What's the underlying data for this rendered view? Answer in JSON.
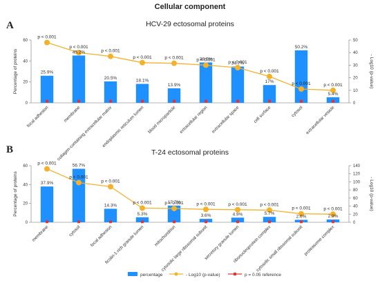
{
  "figure": {
    "title": "Cellular component"
  },
  "legend": {
    "items": [
      {
        "label": "percentage"
      },
      {
        "label": "- Log10 (p-value)"
      },
      {
        "label": "p = 0.05 reference"
      }
    ]
  },
  "colors": {
    "bar": "#1e90ff",
    "line": "#f4b12b",
    "reference": "#e8312f",
    "axis": "#9a9a9a"
  },
  "chart_data": [
    {
      "panel": "A",
      "type": "bar",
      "title": "HCV-29 ectosomal proteins",
      "ylabel": "Percentage of proteins",
      "y2label": "- Log10 (p-value)",
      "ylim": [
        0,
        60
      ],
      "yticks": [
        0,
        20,
        40,
        60
      ],
      "y2lim": [
        0,
        50
      ],
      "y2ticks": [
        0,
        10,
        20,
        30,
        40,
        50
      ],
      "categories": [
        "focal adhesion",
        "membrane",
        "collagen-containing extracellular matrix",
        "endoplasmic reticulum lumen",
        "blood microparticle",
        "extracellular region",
        "extracellular space",
        "cell surface",
        "cytosol",
        "extracellular vesicle"
      ],
      "series": [
        {
          "name": "percentage",
          "type": "bar",
          "values": [
            25.9,
            45.2,
            20.5,
            18.1,
            13.9,
            38.6,
            34.7,
            17.0,
            50.2,
            5.4
          ],
          "labels": [
            "25.9%",
            "45.2%",
            "20.5%",
            "18.1%",
            "13.9%",
            "38.6%",
            "34.7%",
            "17%",
            "50.2%",
            "5.4%"
          ]
        },
        {
          "name": "- Log10 (p-value)",
          "type": "line",
          "axis": "right",
          "values": [
            48,
            40,
            37,
            32,
            31.5,
            30,
            28,
            21,
            11,
            10
          ]
        },
        {
          "name": "p = 0.05 reference",
          "type": "line",
          "axis": "right",
          "values": [
            1.3,
            1.3,
            1.3,
            1.3,
            1.3,
            1.3,
            1.3,
            1.3,
            1.3,
            1.3
          ]
        }
      ],
      "p_labels": [
        "p < 0.001",
        "p < 0.001",
        "p < 0.001",
        "p < 0.001",
        "p < 0.001",
        "p < 0.001",
        "p < 0.001",
        "p < 0.001",
        "p < 0.001",
        "p < 0.001"
      ]
    },
    {
      "panel": "B",
      "type": "bar",
      "title": "T-24 ectosomal proteins",
      "ylabel": "Percentage of proteins",
      "y2label": "- Log10 (p-value)",
      "ylim": [
        0,
        60
      ],
      "yticks": [
        0,
        20,
        40,
        60
      ],
      "y2lim": [
        0,
        140
      ],
      "y2ticks": [
        0,
        20,
        40,
        60,
        80,
        100,
        120,
        140
      ],
      "categories": [
        "membrane",
        "cytosol",
        "focal adhesion",
        "ficolin-1-rich granule lumen",
        "mitochondrion",
        "cytosolic large ribosomal subunit",
        "secretory granule lumen",
        "ribonucleoprotein complex",
        "cytosolic small ribosomal subunit",
        "proteasome complex"
      ],
      "series": [
        {
          "name": "percentage",
          "type": "bar",
          "values": [
            37.9,
            56.7,
            14.3,
            5.3,
            17.7,
            3.6,
            4.9,
            5.7,
            2.6,
            2.9
          ],
          "labels": [
            "37.9%",
            "56.7%",
            "14.3%",
            "5.3%",
            "17.7%",
            "3.6%",
            "4.9%",
            "5.7%",
            "2.6%",
            "2.9%"
          ]
        },
        {
          "name": "- Log10 (p-value)",
          "type": "line",
          "axis": "right",
          "values": [
            132,
            98,
            88,
            35,
            34,
            32,
            31,
            30,
            21,
            20
          ]
        },
        {
          "name": "p = 0.05 reference",
          "type": "line",
          "axis": "right",
          "values": [
            1.3,
            1.3,
            1.3,
            1.3,
            1.3,
            1.3,
            1.3,
            1.3,
            1.3,
            1.3
          ]
        }
      ],
      "p_labels": [
        "p < 0.001",
        "p < 0.001",
        "p < 0.001",
        "p < 0.001",
        "p < 0.001",
        "p < 0.001",
        "p < 0.001",
        "p < 0.001",
        "p < 0.001",
        "p < 0.001"
      ]
    }
  ]
}
